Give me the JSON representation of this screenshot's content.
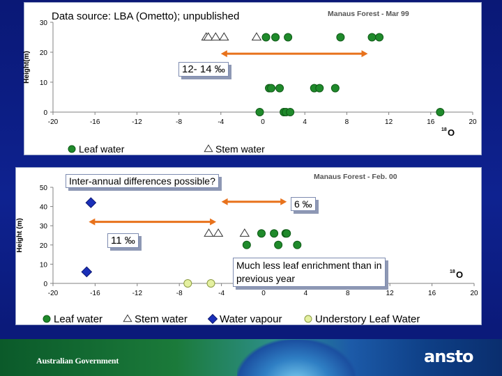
{
  "source_note": "Data source: LBA (Ometto); unpublished",
  "footer": {
    "government": "Australian Government",
    "brand": "ansto"
  },
  "callouts": {
    "top_range": "12- 14 ‰",
    "question": "Inter-annual differences possible?",
    "vapour_diff": "6 ‰",
    "bottom_range": "11 ‰",
    "conclusion_line1": "Much less leaf enrichment than in",
    "conclusion_line2": "previous year"
  },
  "colors": {
    "leaf": "#1f8a2b",
    "leaf_edge": "#0f5a17",
    "vapour": "#1a2fb8",
    "understory": "#e4f0a0",
    "arrow": "#e8721c"
  },
  "chart_data": [
    {
      "type": "scatter",
      "title": "Manaus Forest - Mar 99",
      "xlabel": "18 O",
      "ylabel": "Height(m)",
      "xlim": [
        -20,
        20
      ],
      "ylim": [
        0,
        30
      ],
      "xticks": [
        "-20",
        "-16",
        "-12",
        "-8",
        "-4",
        "0",
        "4",
        "8",
        "12",
        "16",
        "20"
      ],
      "yticks": [
        "0",
        "10",
        "20",
        "30"
      ],
      "legend": [
        "Leaf water",
        "Stem water"
      ],
      "series": [
        {
          "name": "Leaf water",
          "marker": "circle",
          "points": [
            [
              0.3,
              25
            ],
            [
              1.2,
              25
            ],
            [
              2.4,
              25
            ],
            [
              7.4,
              25
            ],
            [
              10.4,
              25
            ],
            [
              11.1,
              25
            ],
            [
              0.6,
              8
            ],
            [
              0.8,
              8
            ],
            [
              1.6,
              8
            ],
            [
              4.9,
              8
            ],
            [
              5.4,
              8
            ],
            [
              6.9,
              8
            ],
            [
              -0.3,
              0
            ],
            [
              2.0,
              0
            ],
            [
              2.2,
              0
            ],
            [
              2.6,
              0
            ],
            [
              16.9,
              0
            ]
          ]
        },
        {
          "name": "Stem water",
          "marker": "triangle",
          "points": [
            [
              -5.4,
              25
            ],
            [
              -5.2,
              25
            ],
            [
              -4.5,
              25
            ],
            [
              -3.7,
              25
            ],
            [
              -0.6,
              25
            ]
          ]
        }
      ],
      "range_arrow": {
        "from": -4,
        "to": 10,
        "y": 19.5,
        "label": "12- 14 ‰"
      }
    },
    {
      "type": "scatter",
      "title": "Manaus Forest - Feb. 00",
      "xlabel": "18 O",
      "ylabel": "Height (m)",
      "xlim": [
        -20,
        20
      ],
      "ylim": [
        0,
        50
      ],
      "xticks": [
        "-20",
        "-16",
        "-12",
        "-8",
        "-4",
        "0",
        "4",
        "8",
        "12",
        "16",
        "20"
      ],
      "yticks": [
        "0",
        "10",
        "20",
        "30",
        "40",
        "50"
      ],
      "legend": [
        "Leaf water",
        "Stem water",
        "Water vapour",
        "Understory Leaf Water"
      ],
      "series": [
        {
          "name": "Leaf water",
          "marker": "circle",
          "points": [
            [
              -1.6,
              20
            ],
            [
              1.4,
              20
            ],
            [
              3.2,
              20
            ],
            [
              -0.2,
              26
            ],
            [
              1.0,
              26
            ],
            [
              2.1,
              26
            ],
            [
              2.2,
              26
            ]
          ]
        },
        {
          "name": "Stem water",
          "marker": "triangle",
          "points": [
            [
              -5.2,
              26
            ],
            [
              -4.3,
              26
            ],
            [
              -1.8,
              26
            ]
          ]
        },
        {
          "name": "Water vapour",
          "marker": "diamond",
          "points": [
            [
              -16.4,
              42
            ],
            [
              -16.8,
              6
            ]
          ]
        },
        {
          "name": "Understory Leaf Water",
          "marker": "circle-light",
          "points": [
            [
              -7.2,
              0
            ],
            [
              -5.0,
              0
            ]
          ]
        }
      ],
      "range_arrows": [
        {
          "from": -16.6,
          "to": -4.5,
          "y": 32,
          "label": "11 ‰"
        },
        {
          "from": -4,
          "to": 2.2,
          "y": 42.5,
          "label": "6 ‰"
        }
      ]
    }
  ]
}
